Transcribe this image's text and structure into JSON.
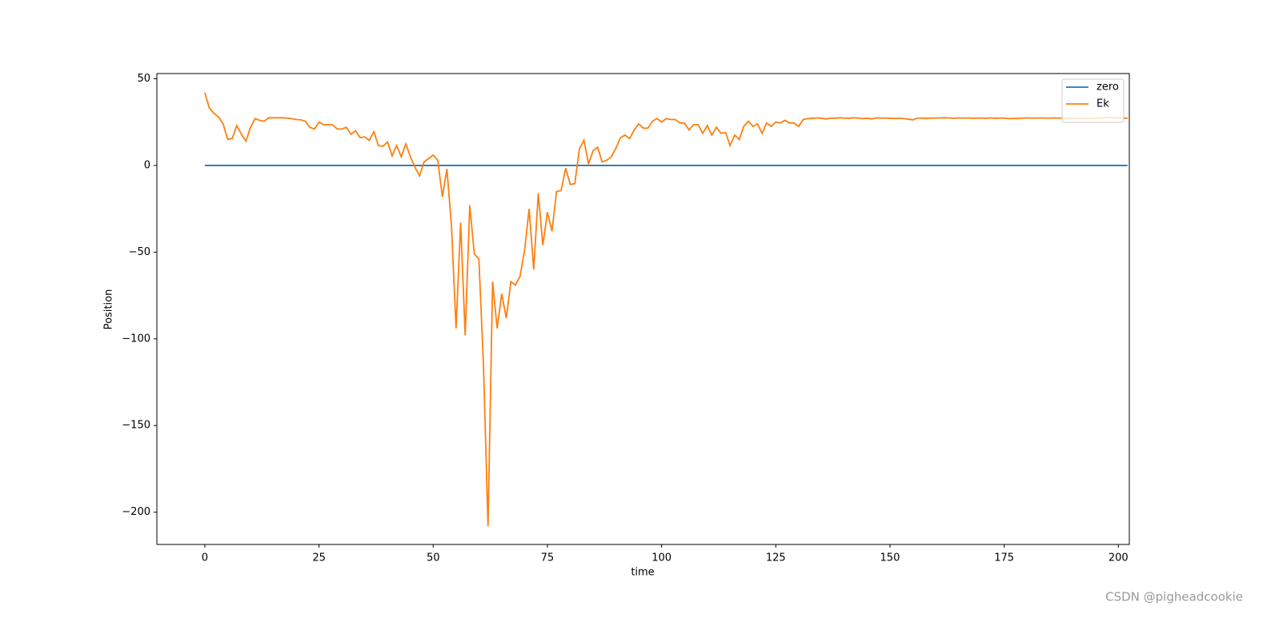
{
  "chart_data": {
    "type": "line",
    "xlabel": "time",
    "ylabel": "Position",
    "xlim": [
      -10.5,
      202.4
    ],
    "ylim": [
      -218.6,
      53
    ],
    "xticks": [
      0,
      25,
      50,
      75,
      100,
      125,
      150,
      175,
      200
    ],
    "yticks": [
      {
        "value": -200,
        "label": "−200"
      },
      {
        "value": -150,
        "label": "−150"
      },
      {
        "value": -100,
        "label": "−100"
      },
      {
        "value": -50,
        "label": "−50"
      },
      0,
      50
    ],
    "grid": false,
    "legend": "upper right",
    "series": [
      {
        "name": "zero",
        "color": "#1f77b4",
        "x": [
          0,
          202
        ],
        "values": [
          0,
          0
        ]
      },
      {
        "name": "Ek",
        "color": "#ff7f0e",
        "x": [
          0,
          1,
          2,
          3,
          4,
          5,
          6,
          7,
          8,
          9,
          10,
          11,
          12,
          13,
          14,
          15,
          16,
          17,
          18,
          19,
          20,
          21,
          22,
          23,
          24,
          25,
          26,
          27,
          28,
          29,
          30,
          31,
          32,
          33,
          34,
          35,
          36,
          37,
          38,
          39,
          40,
          41,
          42,
          43,
          44,
          45,
          46,
          47,
          48,
          49,
          50,
          51,
          52,
          53,
          54,
          55,
          56,
          57,
          58,
          59,
          60,
          61,
          62,
          63,
          64,
          65,
          66,
          67,
          68,
          69,
          70,
          71,
          72,
          73,
          74,
          75,
          76,
          77,
          78,
          79,
          80,
          81,
          82,
          83,
          84,
          85,
          86,
          87,
          88,
          89,
          90,
          91,
          92,
          93,
          94,
          95,
          96,
          97,
          98,
          99,
          100,
          101,
          102,
          103,
          104,
          105,
          106,
          107,
          108,
          109,
          110,
          111,
          112,
          113,
          114,
          115,
          116,
          117,
          118,
          119,
          120,
          121,
          122,
          123,
          124,
          125,
          126,
          127,
          128,
          129,
          130,
          131,
          132,
          133,
          134,
          135,
          136,
          137,
          138,
          139,
          140,
          141,
          142,
          143,
          144,
          145,
          146,
          147,
          148,
          149,
          150,
          151,
          152,
          153,
          154,
          155,
          156,
          157,
          158,
          159,
          160,
          161,
          162,
          163,
          164,
          165,
          166,
          167,
          168,
          169,
          170,
          171,
          172,
          173,
          174,
          175,
          176,
          177,
          178,
          179,
          180,
          181,
          182,
          183,
          184,
          185,
          186,
          187,
          188,
          189,
          190,
          191,
          192,
          193,
          194,
          195,
          196,
          197,
          198,
          199,
          200,
          201,
          202
        ],
        "values": [
          42,
          33,
          30,
          28,
          24,
          15,
          15.5,
          23,
          18,
          14,
          22,
          27,
          26,
          25.5,
          27.5,
          27.5,
          27.5,
          27.5,
          27.3,
          27,
          26.5,
          26.3,
          25.5,
          22,
          21,
          25,
          23.5,
          23.5,
          23.5,
          21,
          21,
          22,
          18,
          20,
          16,
          16.5,
          14.5,
          19.5,
          11.5,
          11,
          13.5,
          5.5,
          11.5,
          5,
          12.5,
          5,
          -1,
          -6,
          2,
          4,
          6,
          3,
          -18,
          -2,
          -35,
          -94,
          -33,
          -98,
          -23,
          -51,
          -54,
          -115,
          -208,
          -67,
          -94,
          -74,
          -88,
          -67,
          -69,
          -64,
          -49,
          -25,
          -60,
          -16,
          -46,
          -27,
          -38,
          -15,
          -14.5,
          -1.5,
          -11,
          -10.5,
          9.5,
          14.5,
          1,
          8.5,
          10.5,
          2,
          3,
          5,
          10,
          16,
          17.5,
          15.5,
          20.5,
          24,
          21.5,
          21.5,
          25.5,
          27,
          25,
          27,
          26.5,
          26.5,
          24.5,
          24.5,
          20.5,
          23.5,
          23.5,
          18.5,
          23,
          17.5,
          22,
          18.5,
          19,
          11.5,
          17.5,
          15,
          22.5,
          25.5,
          22.5,
          24,
          18.5,
          24.5,
          22.5,
          25,
          24.5,
          26,
          24.5,
          24.5,
          22.5,
          26.5,
          27,
          27.2,
          27.4,
          27.2,
          26.8,
          27.3,
          27.2,
          27.5,
          27.3,
          27.2,
          27.5,
          27.3,
          27,
          27.2,
          26.8,
          27.4,
          27.3,
          27.3,
          27.2,
          27.1,
          27.3,
          27,
          26.7,
          26.3,
          27.3,
          27.3,
          27.2,
          27.3,
          27.3,
          27.4,
          27.5,
          27.4,
          27.2,
          27.4,
          27.3,
          27.4,
          27.2,
          27.3,
          27.3,
          27.2,
          27.4,
          27.2,
          27.3,
          27.3,
          27,
          27.1,
          27.1,
          27.3,
          27.4,
          27.3,
          27.3,
          27.4,
          27.3,
          27.3,
          27.4,
          27.3,
          27.4,
          27.3,
          27.2,
          27.2,
          27.1,
          27.2,
          27.1,
          27.2,
          27.3,
          27.5,
          27.6,
          27.5,
          27.4,
          27.3,
          27.2
        ]
      }
    ]
  },
  "watermark": "CSDN @pigheadcookie"
}
